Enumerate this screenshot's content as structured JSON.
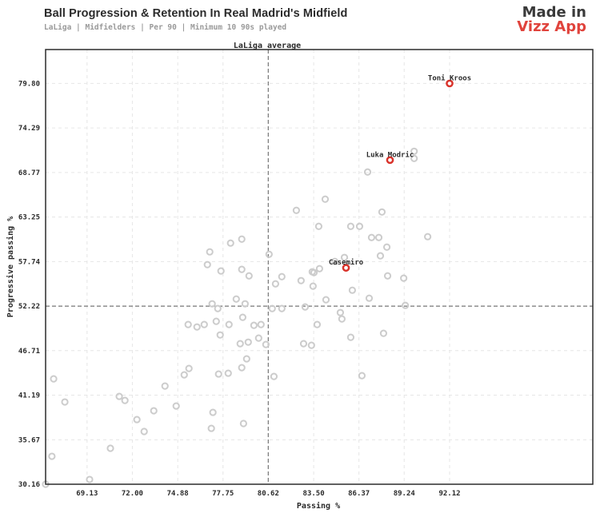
{
  "header": {
    "title": "Ball Progression & Retention In Real Madrid's Midfield",
    "subtitle": "LaLiga | Midfielders | Per 90 | Minimum 10 90s played",
    "brand_line1": "Made in",
    "brand_line2": "Vizz App"
  },
  "chart_data": {
    "type": "scatter",
    "title": "Ball Progression & Retention In Real Madrid's Midfield",
    "subtitle": "LaLiga | Midfielders | Per 90 | Minimum 10 90s played",
    "xlabel": "Passing %",
    "ylabel": "Progressive passing %",
    "xlim": [
      66.5,
      101.2
    ],
    "ylim": [
      30.16,
      84.0
    ],
    "x_ticks": [
      "69.13",
      "72.00",
      "74.88",
      "77.75",
      "80.62",
      "83.50",
      "86.37",
      "89.24",
      "92.12"
    ],
    "y_ticks": [
      "30.16",
      "35.67",
      "41.19",
      "46.71",
      "52.22",
      "57.74",
      "63.25",
      "68.77",
      "74.29",
      "79.80"
    ],
    "grid": true,
    "reference_lines": {
      "label": "LaLiga average",
      "x": 80.62,
      "y": 52.22
    },
    "colors": {
      "highlight": "#d9332b",
      "other": "#cccccc",
      "reference": "#777777"
    },
    "highlighted": [
      {
        "name": "Toni Kroos",
        "x": 92.12,
        "y": 79.8
      },
      {
        "name": "Luka Modric",
        "x": 88.34,
        "y": 70.31
      },
      {
        "name": "Casemiro",
        "x": 85.55,
        "y": 56.96
      }
    ],
    "others": [
      [
        89.87,
        71.4
      ],
      [
        89.87,
        70.51
      ],
      [
        86.92,
        68.83
      ],
      [
        84.23,
        65.47
      ],
      [
        82.4,
        64.08
      ],
      [
        87.83,
        63.88
      ],
      [
        83.82,
        62.1
      ],
      [
        85.85,
        62.1
      ],
      [
        86.41,
        62.1
      ],
      [
        90.73,
        60.82
      ],
      [
        87.17,
        60.72
      ],
      [
        87.63,
        60.72
      ],
      [
        88.14,
        59.53
      ],
      [
        87.73,
        58.45
      ],
      [
        76.91,
        58.94
      ],
      [
        78.23,
        60.03
      ],
      [
        78.94,
        60.52
      ],
      [
        80.67,
        58.64
      ],
      [
        76.76,
        57.36
      ],
      [
        77.62,
        56.57
      ],
      [
        78.94,
        56.77
      ],
      [
        79.4,
        55.97
      ],
      [
        81.48,
        55.87
      ],
      [
        81.08,
        54.98
      ],
      [
        82.7,
        55.38
      ],
      [
        83.41,
        56.47
      ],
      [
        83.52,
        56.37
      ],
      [
        83.87,
        56.86
      ],
      [
        85.45,
        58.25
      ],
      [
        84.84,
        57.75
      ],
      [
        88.19,
        55.97
      ],
      [
        89.21,
        55.68
      ],
      [
        85.95,
        54.19
      ],
      [
        83.46,
        54.69
      ],
      [
        84.28,
        53.01
      ],
      [
        87.02,
        53.2
      ],
      [
        77.06,
        52.51
      ],
      [
        77.42,
        51.92
      ],
      [
        78.59,
        53.1
      ],
      [
        79.15,
        52.51
      ],
      [
        80.87,
        51.92
      ],
      [
        81.48,
        51.92
      ],
      [
        89.31,
        52.31
      ],
      [
        82.96,
        52.12
      ],
      [
        85.19,
        51.42
      ],
      [
        85.29,
        50.63
      ],
      [
        75.54,
        49.94
      ],
      [
        76.1,
        49.64
      ],
      [
        76.56,
        49.94
      ],
      [
        77.32,
        50.34
      ],
      [
        78.13,
        49.94
      ],
      [
        79.0,
        50.83
      ],
      [
        79.71,
        49.84
      ],
      [
        80.16,
        49.94
      ],
      [
        83.72,
        49.94
      ],
      [
        87.93,
        48.85
      ],
      [
        77.57,
        48.65
      ],
      [
        78.84,
        47.57
      ],
      [
        79.35,
        47.76
      ],
      [
        80.01,
        48.26
      ],
      [
        80.47,
        47.47
      ],
      [
        82.86,
        47.57
      ],
      [
        83.36,
        47.37
      ],
      [
        85.85,
        48.36
      ],
      [
        79.25,
        45.69
      ],
      [
        78.94,
        44.6
      ],
      [
        75.59,
        44.5
      ],
      [
        75.29,
        43.71
      ],
      [
        77.47,
        43.81
      ],
      [
        78.08,
        43.91
      ],
      [
        80.98,
        43.51
      ],
      [
        86.56,
        43.61
      ],
      [
        67.01,
        43.21
      ],
      [
        67.72,
        40.35
      ],
      [
        71.17,
        41.04
      ],
      [
        71.53,
        40.54
      ],
      [
        74.07,
        42.32
      ],
      [
        74.78,
        39.85
      ],
      [
        73.36,
        39.26
      ],
      [
        72.29,
        38.17
      ],
      [
        72.75,
        36.69
      ],
      [
        77.11,
        39.06
      ],
      [
        77.01,
        37.08
      ],
      [
        79.05,
        37.68
      ],
      [
        70.61,
        34.61
      ],
      [
        66.9,
        33.62
      ],
      [
        69.29,
        30.75
      ],
      [
        66.5,
        30.16
      ]
    ]
  }
}
